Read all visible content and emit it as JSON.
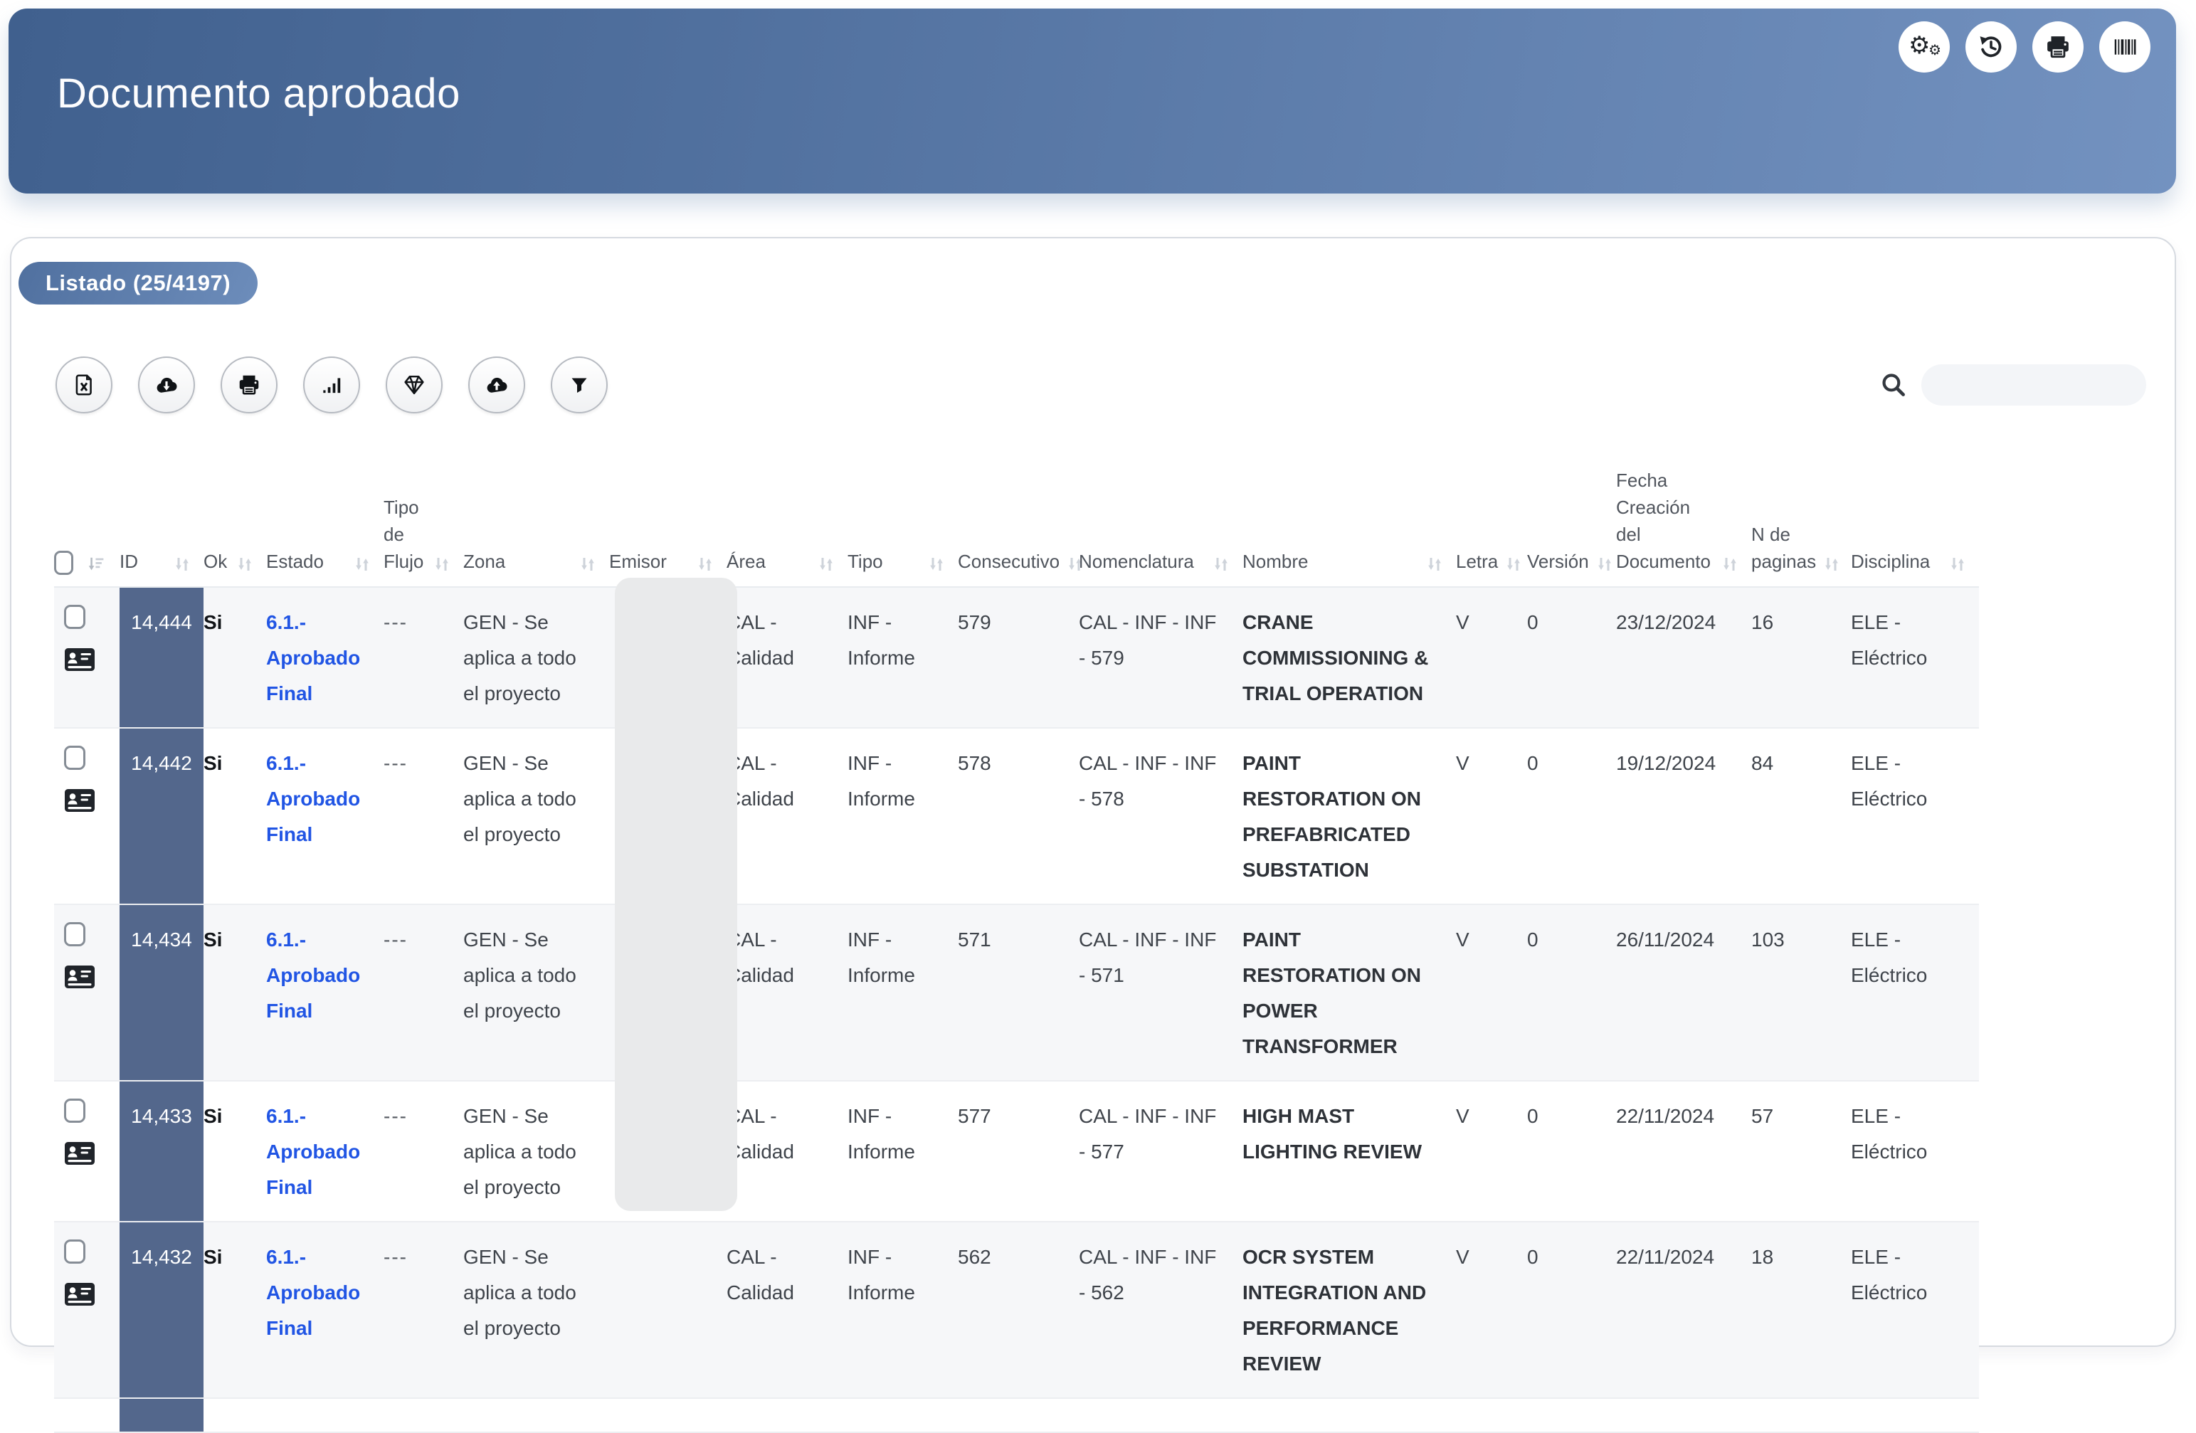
{
  "banner": {
    "title": "Documento aprobado",
    "actions": [
      {
        "name": "settings",
        "icon": "gears-icon"
      },
      {
        "name": "history",
        "icon": "history-icon"
      },
      {
        "name": "print",
        "icon": "printer-icon"
      },
      {
        "name": "barcode",
        "icon": "barcode-icon"
      }
    ]
  },
  "list": {
    "badge_label": "Listado (25/4197)",
    "toolbar": [
      {
        "name": "export-excel",
        "icon": "excel-file-icon"
      },
      {
        "name": "download",
        "icon": "cloud-download-icon"
      },
      {
        "name": "print-list",
        "icon": "printer-icon"
      },
      {
        "name": "statistics",
        "icon": "bar-chart-icon"
      },
      {
        "name": "premium",
        "icon": "gem-icon"
      },
      {
        "name": "upload",
        "icon": "cloud-upload-icon"
      },
      {
        "name": "filter",
        "icon": "filter-icon"
      }
    ],
    "search": {
      "value": "",
      "placeholder": ""
    }
  },
  "table": {
    "columns": [
      {
        "key": "id",
        "label": "ID"
      },
      {
        "key": "ok",
        "label": "Ok"
      },
      {
        "key": "estado",
        "label": "Estado"
      },
      {
        "key": "flujo",
        "label": "Tipo\nde\nFlujo"
      },
      {
        "key": "zona",
        "label": "Zona"
      },
      {
        "key": "emisor",
        "label": "Emisor"
      },
      {
        "key": "area",
        "label": "Área"
      },
      {
        "key": "tipo",
        "label": "Tipo"
      },
      {
        "key": "consecutivo",
        "label": "Consecutivo"
      },
      {
        "key": "nomenclatura",
        "label": "Nomenclatura"
      },
      {
        "key": "nombre",
        "label": "Nombre"
      },
      {
        "key": "letra",
        "label": "Letra"
      },
      {
        "key": "version",
        "label": "Versión"
      },
      {
        "key": "fecha",
        "label": "Fecha\nCreación\ndel\nDocumento"
      },
      {
        "key": "paginas",
        "label": "N de\npaginas"
      },
      {
        "key": "disciplina",
        "label": "Disciplina"
      }
    ],
    "rows": [
      {
        "id": "14,444",
        "ok": "Si",
        "estado": "6.1.- Aprobado Final",
        "flujo": "---",
        "zona": "GEN - Se aplica a todo el proyecto",
        "emisor": "",
        "area": "CAL - Calidad",
        "tipo": "INF - Informe",
        "consecutivo": "579",
        "nomenclatura": "CAL - INF - INF - 579",
        "nombre": "CRANE COMMISSIONING & TRIAL OPERATION",
        "letra": "V",
        "version": "0",
        "fecha": "23/12/2024",
        "paginas": "16",
        "disciplina": "ELE - Eléctrico"
      },
      {
        "id": "14,442",
        "ok": "Si",
        "estado": "6.1.- Aprobado Final",
        "flujo": "---",
        "zona": "GEN - Se aplica a todo el proyecto",
        "emisor": "",
        "area": "CAL - Calidad",
        "tipo": "INF - Informe",
        "consecutivo": "578",
        "nomenclatura": "CAL - INF - INF - 578",
        "nombre": "PAINT RESTORATION ON PREFABRICATED SUBSTATION",
        "letra": "V",
        "version": "0",
        "fecha": "19/12/2024",
        "paginas": "84",
        "disciplina": "ELE - Eléctrico"
      },
      {
        "id": "14,434",
        "ok": "Si",
        "estado": "6.1.- Aprobado Final",
        "flujo": "---",
        "zona": "GEN - Se aplica a todo el proyecto",
        "emisor": "",
        "area": "CAL - Calidad",
        "tipo": "INF - Informe",
        "consecutivo": "571",
        "nomenclatura": "CAL - INF - INF - 571",
        "nombre": "PAINT RESTORATION ON POWER TRANSFORMER",
        "letra": "V",
        "version": "0",
        "fecha": "26/11/2024",
        "paginas": "103",
        "disciplina": "ELE - Eléctrico"
      },
      {
        "id": "14,433",
        "ok": "Si",
        "estado": "6.1.- Aprobado Final",
        "flujo": "---",
        "zona": "GEN - Se aplica a todo el proyecto",
        "emisor": "",
        "area": "CAL - Calidad",
        "tipo": "INF - Informe",
        "consecutivo": "577",
        "nomenclatura": "CAL - INF - INF - 577",
        "nombre": "HIGH MAST LIGHTING REVIEW",
        "letra": "V",
        "version": "0",
        "fecha": "22/11/2024",
        "paginas": "57",
        "disciplina": "ELE - Eléctrico"
      },
      {
        "id": "14,432",
        "ok": "Si",
        "estado": "6.1.- Aprobado Final",
        "flujo": "---",
        "zona": "GEN - Se aplica a todo el proyecto",
        "emisor": "",
        "area": "CAL - Calidad",
        "tipo": "INF - Informe",
        "consecutivo": "562",
        "nomenclatura": "CAL - INF - INF - 562",
        "nombre": "OCR SYSTEM INTEGRATION AND PERFORMANCE REVIEW",
        "letra": "V",
        "version": "0",
        "fecha": "22/11/2024",
        "paginas": "18",
        "disciplina": "ELE - Eléctrico"
      },
      {
        "partial": true,
        "id": "",
        "ok": "",
        "estado": "",
        "flujo": "",
        "zona": "",
        "emisor": "",
        "area": "",
        "tipo": "",
        "consecutivo": "",
        "nomenclatura": "",
        "nombre": "",
        "letra": "",
        "version": "",
        "fecha": "",
        "paginas": "",
        "disciplina": ""
      }
    ]
  },
  "colors": {
    "banner-start": "#40608e",
    "banner-end": "#7392c0",
    "badge-start": "#50709f",
    "badge-end": "#6d8dbb",
    "link": "#2155e4",
    "id-cell": "#53678c",
    "row-alt": "#f6f7f9",
    "redaction": "#e9eaeb"
  }
}
